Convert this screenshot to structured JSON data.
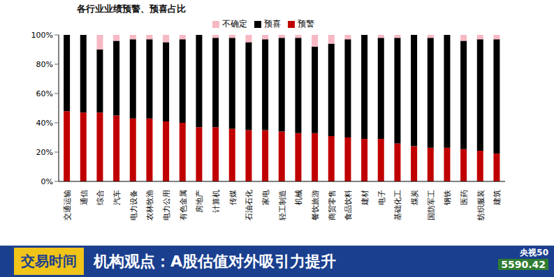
{
  "chart_data": {
    "type": "bar",
    "stacked": true,
    "title": "各行业业绩预警、预喜占比",
    "categories": [
      "交通运输",
      "通信",
      "综合",
      "汽车",
      "电力设备",
      "农林牧渔",
      "电力公用",
      "有色金属",
      "房地产",
      "计算机",
      "传媒",
      "石油石化",
      "家电",
      "轻工制造",
      "机械",
      "餐饮旅游",
      "商贸零售",
      "食品饮料",
      "建材",
      "电子",
      "基础化工",
      "煤炭",
      "国防军工",
      "钢铁",
      "医药",
      "纺织服装",
      "建筑"
    ],
    "series": [
      {
        "name": "预警",
        "color": "#c00000",
        "values": [
          48,
          47,
          47,
          45,
          43,
          43,
          41,
          40,
          37,
          37,
          36,
          35,
          35,
          34,
          33,
          33,
          31,
          30,
          29,
          29,
          26,
          24,
          23,
          23,
          22,
          21,
          19
        ]
      },
      {
        "name": "预喜",
        "color": "#000000",
        "values": [
          52,
          53,
          43,
          51,
          54,
          54,
          54,
          57,
          63,
          61,
          62,
          60,
          62,
          64,
          65,
          59,
          63,
          67,
          71,
          69,
          72,
          76,
          75,
          77,
          74,
          76,
          78
        ]
      },
      {
        "name": "不确定",
        "color": "#f7b8c4",
        "values": [
          0,
          0,
          10,
          4,
          3,
          3,
          5,
          3,
          0,
          2,
          2,
          5,
          3,
          2,
          2,
          8,
          6,
          3,
          0,
          2,
          2,
          0,
          2,
          0,
          4,
          3,
          3
        ]
      }
    ],
    "ylim": [
      0,
      100
    ],
    "yticks": [
      {
        "value": 0,
        "label": "0%"
      },
      {
        "value": 20,
        "label": "20%"
      },
      {
        "value": 40,
        "label": "40%"
      },
      {
        "value": 60,
        "label": "60%"
      },
      {
        "value": 80,
        "label": "80%"
      },
      {
        "value": 100,
        "label": "100%"
      }
    ],
    "grid": false,
    "legend": "top",
    "annotations": [
      "交易时间",
      "机构观点：A股估值对外吸引力提升",
      "央视50",
      "5590.42"
    ]
  }
}
